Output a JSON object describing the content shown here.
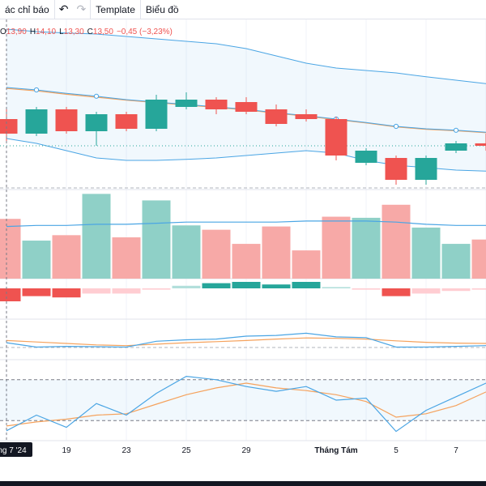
{
  "toolbar": {
    "indicators_label": "ác chỉ báo",
    "undo_icon": "undo-icon",
    "redo_icon": "redo-icon",
    "template_label": "Template",
    "chart_label": "Biểu đồ"
  },
  "legend": {
    "o_label": "O",
    "o_value": "13,90",
    "h_label": "H",
    "h_value": "14,10",
    "l_label": "L",
    "l_value": "13,30",
    "c_label": "C",
    "c_value": "13,50",
    "change": "−0,45 (−3,23%)"
  },
  "colors": {
    "up": "#26a69a",
    "down": "#ef5350",
    "vol_up": "#8fd0c7",
    "vol_down": "#f7a9a7",
    "bb": "#4aa5e4",
    "ma": "#f5a25d"
  },
  "chart_data": {
    "type": "candlestick",
    "time_axis": {
      "labels": [
        "ng 7 '24",
        "19",
        "23",
        "25",
        "29",
        "Tháng Tám",
        "5",
        "7"
      ],
      "crosshair_label": "ng 7 '24"
    },
    "candles": [
      {
        "o": 13.75,
        "c": 13.45,
        "h": 13.95,
        "l": 13.3
      },
      {
        "o": 13.45,
        "c": 13.95,
        "h": 14.0,
        "l": 13.4
      },
      {
        "o": 13.95,
        "c": 13.5,
        "h": 14.0,
        "l": 13.45
      },
      {
        "o": 13.5,
        "c": 13.85,
        "h": 13.9,
        "l": 13.2
      },
      {
        "o": 13.85,
        "c": 13.55,
        "h": 13.9,
        "l": 13.5
      },
      {
        "o": 13.55,
        "c": 14.15,
        "h": 14.25,
        "l": 13.5
      },
      {
        "o": 14.0,
        "c": 14.15,
        "h": 14.3,
        "l": 13.95
      },
      {
        "o": 14.15,
        "c": 13.95,
        "h": 14.2,
        "l": 13.85
      },
      {
        "o": 14.1,
        "c": 13.9,
        "h": 14.2,
        "l": 13.85
      },
      {
        "o": 13.95,
        "c": 13.65,
        "h": 14.05,
        "l": 13.6
      },
      {
        "o": 13.85,
        "c": 13.75,
        "h": 13.95,
        "l": 13.7
      },
      {
        "o": 13.75,
        "c": 13.0,
        "h": 13.8,
        "l": 12.9
      },
      {
        "o": 12.85,
        "c": 13.1,
        "h": 13.15,
        "l": 12.8
      },
      {
        "o": 12.95,
        "c": 12.5,
        "h": 13.0,
        "l": 12.4
      },
      {
        "o": 12.5,
        "c": 12.95,
        "h": 13.0,
        "l": 12.4
      },
      {
        "o": 13.1,
        "c": 13.25,
        "h": 13.3,
        "l": 13.05
      },
      {
        "o": 13.25,
        "c": 13.2,
        "h": 13.45,
        "l": 13.1
      }
    ],
    "bollinger": {
      "upper": [
        15.6,
        15.55,
        15.52,
        15.5,
        15.45,
        15.4,
        15.35,
        15.3,
        15.2,
        15.05,
        14.9,
        14.8,
        14.75,
        14.7,
        14.62,
        14.55,
        14.48
      ],
      "middle": [
        14.4,
        14.35,
        14.28,
        14.22,
        14.15,
        14.1,
        14.05,
        14.0,
        13.95,
        13.88,
        13.82,
        13.75,
        13.68,
        13.6,
        13.55,
        13.52,
        13.48
      ],
      "lower": [
        13.35,
        13.25,
        13.1,
        12.95,
        12.9,
        12.9,
        12.92,
        12.95,
        13.0,
        13.05,
        13.1,
        13.05,
        12.9,
        12.8,
        12.75,
        12.7,
        12.68
      ]
    },
    "ma": [
      14.38,
      14.33,
      14.26,
      14.2,
      14.14,
      14.09,
      14.04,
      13.99,
      13.94,
      13.87,
      13.81,
      13.74,
      13.67,
      13.59,
      13.54,
      13.51,
      13.47
    ],
    "volume": [
      5.5,
      3.5,
      4.0,
      7.8,
      3.8,
      7.2,
      4.9,
      4.5,
      3.2,
      4.8,
      2.6,
      5.7,
      5.6,
      6.8,
      4.7,
      3.2,
      3.6
    ],
    "volume_ma": [
      4.8,
      4.9,
      4.9,
      5.0,
      5.0,
      5.1,
      5.2,
      5.2,
      5.2,
      5.2,
      5.3,
      5.3,
      5.3,
      5.2,
      5.0,
      4.9,
      4.9
    ],
    "histogram": [
      -1.0,
      -0.6,
      -0.7,
      -0.4,
      -0.4,
      -0.1,
      0.2,
      0.4,
      0.5,
      0.3,
      0.5,
      0.1,
      -0.1,
      -0.6,
      -0.4,
      -0.2,
      -0.1
    ],
    "macd": [
      0.05,
      -0.25,
      -0.2,
      -0.22,
      -0.25,
      0.15,
      0.25,
      0.3,
      0.5,
      0.55,
      0.7,
      0.45,
      0.4,
      -0.25,
      -0.25,
      -0.2,
      -0.15
    ],
    "macd_signal": [
      0.2,
      0.1,
      0.0,
      -0.1,
      -0.15,
      -0.05,
      0.05,
      0.12,
      0.2,
      0.3,
      0.38,
      0.35,
      0.3,
      0.18,
      0.08,
      0.02,
      0.0
    ],
    "stoch_k": [
      5,
      28,
      10,
      45,
      28,
      60,
      85,
      80,
      70,
      63,
      70,
      50,
      53,
      4,
      35,
      55,
      75
    ],
    "stoch_d": [
      12,
      18,
      22,
      28,
      30,
      44,
      58,
      68,
      75,
      68,
      64,
      58,
      48,
      25,
      30,
      42,
      62
    ],
    "stoch_bands": [
      20,
      80
    ]
  }
}
